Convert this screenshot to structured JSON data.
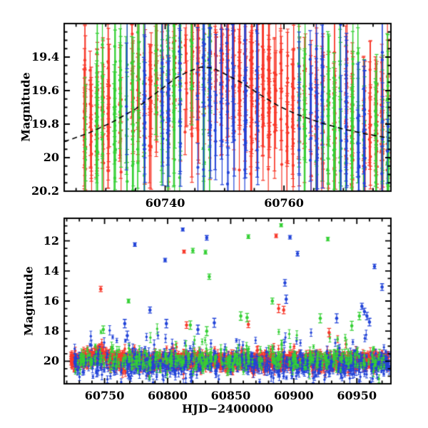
{
  "figure": {
    "background": "#ffffff",
    "axis_color": "#000000",
    "seed": 20250915,
    "colors": {
      "red": "#f8392b",
      "green": "#35d035",
      "blue": "#2244d8",
      "model": "#000000"
    }
  },
  "chart_data": [
    {
      "id": "top-zoom-panel",
      "type": "scatter",
      "title": "",
      "xlabel": "",
      "ylabel": "Magnitude",
      "xlim": [
        60723,
        60778
      ],
      "ylim": [
        20.2,
        19.2
      ],
      "y_axis_inverted": true,
      "grid": false,
      "legend": "none",
      "x_major_ticks": [
        {
          "value": 60740,
          "label": "60740"
        },
        {
          "value": 60760,
          "label": "60760"
        }
      ],
      "x_minor_step": 5,
      "y_major_ticks": [
        {
          "value": 19.4,
          "label": "19.4"
        },
        {
          "value": 19.6,
          "label": "19.6"
        },
        {
          "value": 19.8,
          "label": "19.8"
        },
        {
          "value": 20.0,
          "label": "20"
        },
        {
          "value": 20.2,
          "label": "20.2"
        }
      ],
      "y_minor_step": 0.05,
      "model_curve": {
        "color": "#000000",
        "dash": [
          7,
          5
        ],
        "points": [
          [
            60723,
            19.905
          ],
          [
            60727,
            19.855
          ],
          [
            60731,
            19.79
          ],
          [
            60735,
            19.71
          ],
          [
            60739,
            19.6
          ],
          [
            60742,
            19.52
          ],
          [
            60744,
            19.485
          ],
          [
            60746,
            19.46
          ],
          [
            60748,
            19.465
          ],
          [
            60750,
            19.5
          ],
          [
            60753,
            19.555
          ],
          [
            60756,
            19.625
          ],
          [
            60759,
            19.69
          ],
          [
            60762,
            19.74
          ],
          [
            60766,
            19.79
          ],
          [
            60770,
            19.83
          ],
          [
            60774,
            19.86
          ],
          [
            60778,
            19.885
          ]
        ]
      },
      "series": [
        {
          "name": "red-photometry",
          "color_key": "red",
          "gen": {
            "windows": [
              [
                60726,
                60777
              ]
            ],
            "night_prob": 0.92,
            "n_min": 6,
            "n_max": 22,
            "time_jitter": 0.16,
            "mag_mode": "model",
            "mag_offset": -0.05,
            "mag_sigma": 0.16,
            "uniform_frac": 0.2,
            "uniform_range": [
              19.33,
              20.12
            ],
            "err_min": 0.1,
            "err_max": 0.34
          }
        },
        {
          "name": "green-photometry",
          "color_key": "green",
          "gen": {
            "windows": [
              [
                60726,
                60747
              ],
              [
                60762,
                60778
              ]
            ],
            "night_prob": 0.78,
            "n_min": 3,
            "n_max": 12,
            "time_jitter": 0.14,
            "mag_mode": "model",
            "mag_offset": 0.0,
            "mag_sigma": 0.2,
            "uniform_frac": 0.3,
            "uniform_range": [
              19.3,
              20.15
            ],
            "err_min": 0.14,
            "err_max": 0.45
          }
        },
        {
          "name": "blue-photometry",
          "color_key": "blue",
          "gen": {
            "windows": [
              [
                60732,
                60778
              ]
            ],
            "night_prob": 0.5,
            "n_min": 2,
            "n_max": 9,
            "time_jitter": 0.14,
            "mag_mode": "model",
            "mag_offset": 0.03,
            "mag_sigma": 0.2,
            "uniform_frac": 0.28,
            "uniform_range": [
              19.3,
              20.18
            ],
            "err_min": 0.12,
            "err_max": 0.4
          }
        }
      ]
    },
    {
      "id": "bottom-full-panel",
      "type": "scatter",
      "title": "",
      "xlabel": "HJD−2400000",
      "ylabel": "Magnitude",
      "xlim": [
        60718,
        60977
      ],
      "ylim": [
        21.5,
        10.5
      ],
      "y_axis_inverted": true,
      "grid": false,
      "legend": "none",
      "x_major_ticks": [
        {
          "value": 60750,
          "label": "60750"
        },
        {
          "value": 60800,
          "label": "60800"
        },
        {
          "value": 60850,
          "label": "60850"
        },
        {
          "value": 60900,
          "label": "60900"
        },
        {
          "value": 60950,
          "label": "60950"
        }
      ],
      "x_minor_step": 10,
      "y_major_ticks": [
        {
          "value": 12,
          "label": "12"
        },
        {
          "value": 14,
          "label": "14"
        },
        {
          "value": 16,
          "label": "16"
        },
        {
          "value": 18,
          "label": "18"
        },
        {
          "value": 20,
          "label": "20"
        }
      ],
      "y_minor_step": 0.5,
      "series": [
        {
          "name": "red-photometry",
          "color_key": "red",
          "gen": {
            "windows": [
              [
                60723,
                60974
              ]
            ],
            "night_prob": 0.97,
            "n_min": 6,
            "n_max": 15,
            "time_jitter": 0.45,
            "base_mag": 19.97,
            "mag_sigma": 0.24,
            "bump": {
              "t0": 60746,
              "amp": 0.48,
              "width": 8
            },
            "bright_tail_frac": 0.012,
            "bright_tail_max": 1.2,
            "faint_tail_frac": 0.05,
            "faint_tail_max": 0.6,
            "err_min": 0.08,
            "err_max": 0.3
          }
        },
        {
          "name": "blue-photometry",
          "color_key": "blue",
          "gen": {
            "windows": [
              [
                60726,
                60975
              ]
            ],
            "night_prob": 0.85,
            "n_min": 2,
            "n_max": 6,
            "time_jitter": 0.45,
            "base_mag": 20.15,
            "mag_sigma": 0.38,
            "bright_tail_frac": 0.09,
            "bright_tail_max": 1.9,
            "faint_tail_frac": 0.08,
            "faint_tail_max": 0.8,
            "err_min": 0.1,
            "err_max": 0.35
          }
        },
        {
          "name": "green-photometry",
          "color_key": "green",
          "gen": {
            "windows": [
              [
                60726,
                60972
              ]
            ],
            "night_prob": 0.55,
            "n_min": 1,
            "n_max": 4,
            "time_jitter": 0.4,
            "base_mag": 19.9,
            "mag_sigma": 0.33,
            "bright_tail_frac": 0.1,
            "bright_tail_max": 2.2,
            "faint_tail_frac": 0.08,
            "faint_tail_max": 0.9,
            "err_min": 0.1,
            "err_max": 0.35
          }
        }
      ],
      "outliers": [
        {
          "s": "red",
          "x": 60747,
          "y": 15.2,
          "e": 0.18
        },
        {
          "s": "red",
          "x": 60813,
          "y": 12.72,
          "e": 0.1
        },
        {
          "s": "red",
          "x": 60815,
          "y": 17.6,
          "e": 0.22
        },
        {
          "s": "red",
          "x": 60864,
          "y": 17.55,
          "e": 0.22
        },
        {
          "s": "red",
          "x": 60886,
          "y": 11.67,
          "e": 0.12
        },
        {
          "s": "red",
          "x": 60888,
          "y": 16.5,
          "e": 0.28
        },
        {
          "s": "red",
          "x": 60892,
          "y": 16.6,
          "e": 0.25
        },
        {
          "s": "red",
          "x": 60928,
          "y": 18.1,
          "e": 0.28
        },
        {
          "s": "green",
          "x": 60749,
          "y": 17.9,
          "e": 0.25
        },
        {
          "s": "green",
          "x": 60769,
          "y": 16.0,
          "e": 0.12
        },
        {
          "s": "green",
          "x": 60818,
          "y": 17.6,
          "e": 0.28
        },
        {
          "s": "green",
          "x": 60820,
          "y": 12.65,
          "e": 0.15
        },
        {
          "s": "green",
          "x": 60830,
          "y": 12.75,
          "e": 0.12
        },
        {
          "s": "green",
          "x": 60831,
          "y": 18.0,
          "e": 0.3
        },
        {
          "s": "green",
          "x": 60833,
          "y": 14.38,
          "e": 0.18
        },
        {
          "s": "green",
          "x": 60858,
          "y": 17.0,
          "e": 0.28
        },
        {
          "s": "green",
          "x": 60863,
          "y": 17.1,
          "e": 0.28
        },
        {
          "s": "green",
          "x": 60864,
          "y": 11.72,
          "e": 0.12
        },
        {
          "s": "green",
          "x": 60883,
          "y": 16.0,
          "e": 0.2
        },
        {
          "s": "green",
          "x": 60890,
          "y": 10.96,
          "e": 0.1
        },
        {
          "s": "green",
          "x": 60921,
          "y": 17.15,
          "e": 0.3
        },
        {
          "s": "green",
          "x": 60927,
          "y": 11.88,
          "e": 0.12
        },
        {
          "s": "green",
          "x": 60946,
          "y": 17.65,
          "e": 0.3
        },
        {
          "s": "green",
          "x": 60952,
          "y": 17.0,
          "e": 0.25
        },
        {
          "s": "blue",
          "x": 60766,
          "y": 17.5,
          "e": 0.28
        },
        {
          "s": "blue",
          "x": 60768,
          "y": 18.3,
          "e": 0.3
        },
        {
          "s": "blue",
          "x": 60774,
          "y": 12.25,
          "e": 0.12
        },
        {
          "s": "blue",
          "x": 60786,
          "y": 16.6,
          "e": 0.2
        },
        {
          "s": "blue",
          "x": 60798,
          "y": 13.28,
          "e": 0.12
        },
        {
          "s": "blue",
          "x": 60799,
          "y": 17.5,
          "e": 0.28
        },
        {
          "s": "blue",
          "x": 60812,
          "y": 11.25,
          "e": 0.1
        },
        {
          "s": "blue",
          "x": 60824,
          "y": 17.9,
          "e": 0.3
        },
        {
          "s": "blue",
          "x": 60831,
          "y": 11.8,
          "e": 0.15
        },
        {
          "s": "blue",
          "x": 60837,
          "y": 17.45,
          "e": 0.3
        },
        {
          "s": "blue",
          "x": 60893,
          "y": 14.79,
          "e": 0.22
        },
        {
          "s": "blue",
          "x": 60894,
          "y": 15.88,
          "e": 0.28
        },
        {
          "s": "blue",
          "x": 60897,
          "y": 11.76,
          "e": 0.12
        },
        {
          "s": "blue",
          "x": 60903,
          "y": 12.85,
          "e": 0.15
        },
        {
          "s": "blue",
          "x": 60934,
          "y": 17.15,
          "e": 0.3
        },
        {
          "s": "blue",
          "x": 60954,
          "y": 16.35,
          "e": 0.2
        },
        {
          "s": "blue",
          "x": 60956,
          "y": 16.7,
          "e": 0.22
        },
        {
          "s": "blue",
          "x": 60958,
          "y": 17.0,
          "e": 0.25
        },
        {
          "s": "blue",
          "x": 60960,
          "y": 17.4,
          "e": 0.25
        },
        {
          "s": "blue",
          "x": 60964,
          "y": 13.7,
          "e": 0.15
        },
        {
          "s": "blue",
          "x": 60970,
          "y": 15.07,
          "e": 0.22
        }
      ]
    }
  ]
}
